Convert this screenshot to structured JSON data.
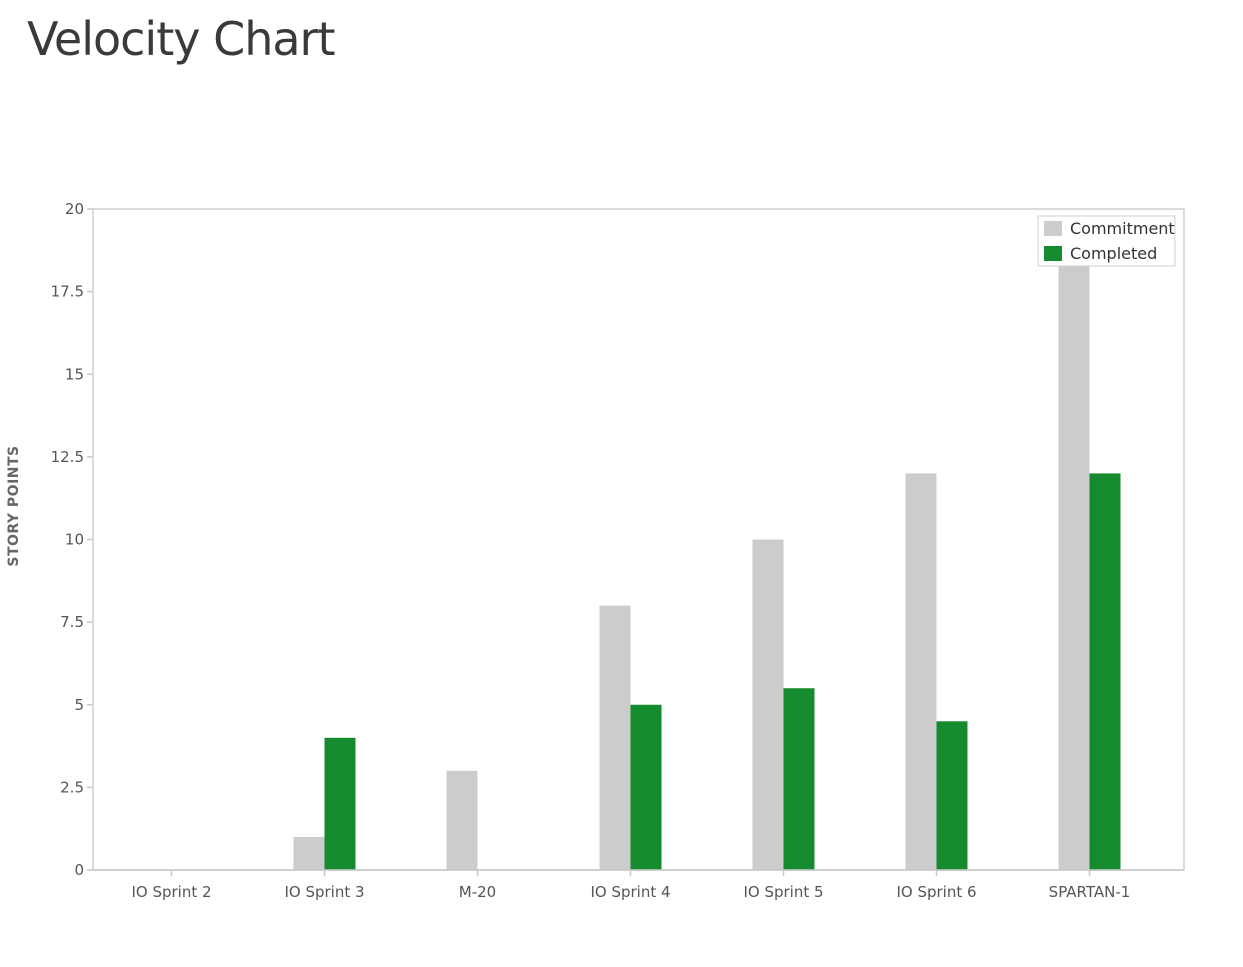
{
  "page": {
    "title": "Velocity Chart"
  },
  "chart_data": {
    "type": "bar",
    "title": "",
    "xlabel": "",
    "ylabel": "STORY POINTS",
    "ylim": [
      0,
      20
    ],
    "yticks": [
      "0",
      "2.5",
      "5",
      "7.5",
      "10",
      "12.5",
      "15",
      "17.5",
      "20"
    ],
    "grid": false,
    "legend_position": "top-right",
    "categories": [
      "IO Sprint 2",
      "IO Sprint 3",
      "M-20",
      "IO Sprint 4",
      "IO Sprint 5",
      "IO Sprint 6",
      "SPARTAN-1"
    ],
    "series": [
      {
        "name": "Commitment",
        "color": "#cccccc",
        "values": [
          0,
          1,
          3,
          8,
          10,
          12,
          18.5
        ]
      },
      {
        "name": "Completed",
        "color": "#168a2f",
        "values": [
          0,
          4,
          0,
          5,
          5.5,
          4.5,
          12
        ]
      }
    ]
  }
}
